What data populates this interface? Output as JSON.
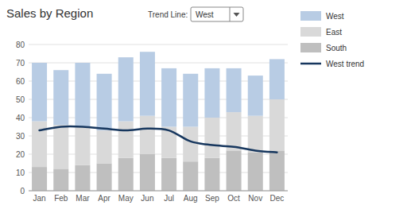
{
  "chart_data": {
    "type": "bar",
    "title": "Sales by Region",
    "annotations": [
      "Trend Line:",
      "West"
    ],
    "categories": [
      "Jan",
      "Feb",
      "Mar",
      "Apr",
      "May",
      "Jun",
      "Jul",
      "Aug",
      "Sep",
      "Oct",
      "Nov",
      "Dec"
    ],
    "series": [
      {
        "name": "South",
        "color": "#bfbfbf",
        "values": [
          13,
          12,
          14,
          15,
          18,
          20,
          18,
          16,
          18,
          22,
          21,
          22
        ]
      },
      {
        "name": "East",
        "color": "#d9d9d9",
        "values": [
          25,
          24,
          21,
          18,
          20,
          21,
          17,
          19,
          22,
          21,
          20,
          28
        ]
      },
      {
        "name": "West",
        "color": "#b8cce4",
        "values": [
          32,
          30,
          35,
          31,
          35,
          35,
          32,
          29,
          27,
          24,
          22,
          22
        ]
      },
      {
        "name": "West trend",
        "type": "line",
        "color": "#17375e",
        "values": [
          33,
          35,
          35,
          34,
          33,
          34,
          33,
          27,
          25,
          24,
          22,
          21
        ]
      }
    ],
    "stacked": true,
    "ylim": [
      0,
      80
    ],
    "yticks": [
      0,
      10,
      20,
      30,
      40,
      50,
      60,
      70,
      80
    ],
    "grid": true,
    "legend": "right"
  }
}
